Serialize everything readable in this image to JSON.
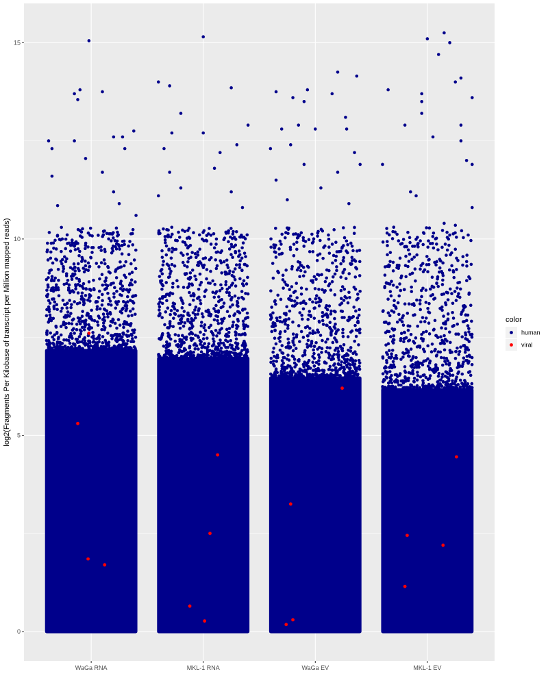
{
  "chart_data": {
    "type": "scatter",
    "title": "",
    "xlabel": "",
    "ylabel": "log2(Fragments Per Kilobase of transcript per Million mapped reads)",
    "categories": [
      "WaGa RNA",
      "MKL-1 RNA",
      "WaGa EV",
      "MKL-1 EV"
    ],
    "yticks": [
      0,
      5,
      10,
      15
    ],
    "ylim": [
      -0.75,
      16.0
    ],
    "grid": true,
    "legend": {
      "title": "color",
      "position": "right",
      "entries": [
        {
          "label": "human",
          "color": "#00008b"
        },
        {
          "label": "viral",
          "color": "#ff0000"
        }
      ]
    },
    "colors": {
      "human": "#00008b",
      "viral": "#ff0000",
      "panel": "#ebebeb",
      "grid": "#ffffff"
    },
    "jitter_width": 0.4,
    "dense_band": [
      {
        "category": "WaGa RNA",
        "ymin": 0,
        "ymax": 7.2
      },
      {
        "category": "MKL-1 RNA",
        "ymin": 0,
        "ymax": 7.0
      },
      {
        "category": "WaGa EV",
        "ymin": 0,
        "ymax": 6.5
      },
      {
        "category": "MKL-1 EV",
        "ymin": 0,
        "ymax": 6.2
      }
    ],
    "series": [
      {
        "name": "viral",
        "points": [
          {
            "x": "WaGa RNA",
            "offset": -0.05,
            "y": 7.6
          },
          {
            "x": "WaGa RNA",
            "offset": -0.3,
            "y": 5.3
          },
          {
            "x": "WaGa RNA",
            "offset": -0.07,
            "y": 1.85
          },
          {
            "x": "WaGa RNA",
            "offset": 0.3,
            "y": 1.7
          },
          {
            "x": "MKL-1 RNA",
            "offset": 0.32,
            "y": 4.5
          },
          {
            "x": "MKL-1 RNA",
            "offset": 0.15,
            "y": 2.5
          },
          {
            "x": "MKL-1 RNA",
            "offset": -0.3,
            "y": 0.65
          },
          {
            "x": "MKL-1 RNA",
            "offset": 0.03,
            "y": 0.27
          },
          {
            "x": "WaGa EV",
            "offset": 0.6,
            "y": 6.2
          },
          {
            "x": "WaGa EV",
            "offset": -0.55,
            "y": 3.25
          },
          {
            "x": "WaGa EV",
            "offset": -0.5,
            "y": 0.3
          },
          {
            "x": "WaGa EV",
            "offset": -0.65,
            "y": 0.18
          },
          {
            "x": "MKL-1 EV",
            "offset": 0.65,
            "y": 4.45
          },
          {
            "x": "MKL-1 EV",
            "offset": -0.45,
            "y": 2.45
          },
          {
            "x": "MKL-1 EV",
            "offset": 0.35,
            "y": 2.2
          },
          {
            "x": "MKL-1 EV",
            "offset": -0.5,
            "y": 1.15
          }
        ]
      },
      {
        "name": "human",
        "outliers": [
          {
            "x": "WaGa RNA",
            "offset": -0.02,
            "y": 15.05
          },
          {
            "x": "WaGa RNA",
            "offset": 0.1,
            "y": 13.75
          },
          {
            "x": "WaGa RNA",
            "offset": -0.15,
            "y": 13.7
          },
          {
            "x": "WaGa RNA",
            "offset": -0.1,
            "y": 13.8
          },
          {
            "x": "WaGa RNA",
            "offset": -0.12,
            "y": 13.55
          },
          {
            "x": "WaGa RNA",
            "offset": -0.38,
            "y": 12.5
          },
          {
            "x": "WaGa RNA",
            "offset": -0.35,
            "y": 12.3
          },
          {
            "x": "WaGa RNA",
            "offset": -0.15,
            "y": 12.5
          },
          {
            "x": "WaGa RNA",
            "offset": 0.38,
            "y": 12.75
          },
          {
            "x": "WaGa RNA",
            "offset": 0.28,
            "y": 12.6
          },
          {
            "x": "WaGa RNA",
            "offset": 0.2,
            "y": 12.6
          },
          {
            "x": "WaGa RNA",
            "offset": -0.05,
            "y": 12.05
          },
          {
            "x": "WaGa RNA",
            "offset": 0.3,
            "y": 12.3
          },
          {
            "x": "WaGa RNA",
            "offset": 0.1,
            "y": 11.7
          },
          {
            "x": "WaGa RNA",
            "offset": -0.35,
            "y": 11.6
          },
          {
            "x": "WaGa RNA",
            "offset": 0.2,
            "y": 11.2
          },
          {
            "x": "WaGa RNA",
            "offset": 0.25,
            "y": 10.9
          },
          {
            "x": "WaGa RNA",
            "offset": -0.3,
            "y": 10.85
          },
          {
            "x": "WaGa RNA",
            "offset": 0.4,
            "y": 10.6
          },
          {
            "x": "MKL-1 RNA",
            "offset": 0.0,
            "y": 15.15
          },
          {
            "x": "MKL-1 RNA",
            "offset": -0.4,
            "y": 14.0
          },
          {
            "x": "MKL-1 RNA",
            "offset": -0.3,
            "y": 13.9
          },
          {
            "x": "MKL-1 RNA",
            "offset": 0.25,
            "y": 13.85
          },
          {
            "x": "MKL-1 RNA",
            "offset": -0.2,
            "y": 13.2
          },
          {
            "x": "MKL-1 RNA",
            "offset": 0.4,
            "y": 12.9
          },
          {
            "x": "MKL-1 RNA",
            "offset": -0.28,
            "y": 12.7
          },
          {
            "x": "MKL-1 RNA",
            "offset": 0.0,
            "y": 12.7
          },
          {
            "x": "MKL-1 RNA",
            "offset": 0.3,
            "y": 12.4
          },
          {
            "x": "MKL-1 RNA",
            "offset": -0.35,
            "y": 12.3
          },
          {
            "x": "MKL-1 RNA",
            "offset": 0.15,
            "y": 12.2
          },
          {
            "x": "MKL-1 RNA",
            "offset": 0.1,
            "y": 11.8
          },
          {
            "x": "MKL-1 RNA",
            "offset": -0.3,
            "y": 11.7
          },
          {
            "x": "MKL-1 RNA",
            "offset": 0.25,
            "y": 11.2
          },
          {
            "x": "MKL-1 RNA",
            "offset": -0.2,
            "y": 11.3
          },
          {
            "x": "MKL-1 RNA",
            "offset": 0.35,
            "y": 10.8
          },
          {
            "x": "MKL-1 RNA",
            "offset": -0.4,
            "y": 11.1
          },
          {
            "x": "WaGa EV",
            "offset": 0.2,
            "y": 14.25
          },
          {
            "x": "WaGa EV",
            "offset": 0.37,
            "y": 14.15
          },
          {
            "x": "WaGa EV",
            "offset": -0.35,
            "y": 13.75
          },
          {
            "x": "WaGa EV",
            "offset": -0.07,
            "y": 13.8
          },
          {
            "x": "WaGa EV",
            "offset": -0.2,
            "y": 13.6
          },
          {
            "x": "WaGa EV",
            "offset": -0.1,
            "y": 13.5
          },
          {
            "x": "WaGa EV",
            "offset": 0.15,
            "y": 13.7
          },
          {
            "x": "WaGa EV",
            "offset": 0.27,
            "y": 13.1
          },
          {
            "x": "WaGa EV",
            "offset": -0.3,
            "y": 12.8
          },
          {
            "x": "WaGa EV",
            "offset": -0.15,
            "y": 12.9
          },
          {
            "x": "WaGa EV",
            "offset": 0.0,
            "y": 12.8
          },
          {
            "x": "WaGa EV",
            "offset": 0.28,
            "y": 12.8
          },
          {
            "x": "WaGa EV",
            "offset": -0.4,
            "y": 12.3
          },
          {
            "x": "WaGa EV",
            "offset": -0.22,
            "y": 12.4
          },
          {
            "x": "WaGa EV",
            "offset": 0.35,
            "y": 12.2
          },
          {
            "x": "WaGa EV",
            "offset": 0.4,
            "y": 11.9
          },
          {
            "x": "WaGa EV",
            "offset": -0.1,
            "y": 11.9
          },
          {
            "x": "WaGa EV",
            "offset": 0.2,
            "y": 11.7
          },
          {
            "x": "WaGa EV",
            "offset": -0.35,
            "y": 11.5
          },
          {
            "x": "WaGa EV",
            "offset": 0.05,
            "y": 11.3
          },
          {
            "x": "WaGa EV",
            "offset": -0.25,
            "y": 11.0
          },
          {
            "x": "WaGa EV",
            "offset": 0.3,
            "y": 10.9
          },
          {
            "x": "MKL-1 EV",
            "offset": 0.15,
            "y": 15.25
          },
          {
            "x": "MKL-1 EV",
            "offset": 0.2,
            "y": 15.0
          },
          {
            "x": "MKL-1 EV",
            "offset": 0.0,
            "y": 15.1
          },
          {
            "x": "MKL-1 EV",
            "offset": 0.1,
            "y": 14.7
          },
          {
            "x": "MKL-1 EV",
            "offset": 0.3,
            "y": 14.1
          },
          {
            "x": "MKL-1 EV",
            "offset": 0.25,
            "y": 14.0
          },
          {
            "x": "MKL-1 EV",
            "offset": -0.35,
            "y": 13.8
          },
          {
            "x": "MKL-1 EV",
            "offset": -0.05,
            "y": 13.7
          },
          {
            "x": "MKL-1 EV",
            "offset": 0.4,
            "y": 13.6
          },
          {
            "x": "MKL-1 EV",
            "offset": -0.05,
            "y": 13.5
          },
          {
            "x": "MKL-1 EV",
            "offset": -0.05,
            "y": 13.2
          },
          {
            "x": "MKL-1 EV",
            "offset": -0.2,
            "y": 12.9
          },
          {
            "x": "MKL-1 EV",
            "offset": 0.3,
            "y": 12.9
          },
          {
            "x": "MKL-1 EV",
            "offset": 0.05,
            "y": 12.6
          },
          {
            "x": "MKL-1 EV",
            "offset": 0.3,
            "y": 12.5
          },
          {
            "x": "MKL-1 EV",
            "offset": 0.35,
            "y": 12.0
          },
          {
            "x": "MKL-1 EV",
            "offset": 0.4,
            "y": 11.9
          },
          {
            "x": "MKL-1 EV",
            "offset": -0.4,
            "y": 11.9
          },
          {
            "x": "MKL-1 EV",
            "offset": -0.15,
            "y": 11.2
          },
          {
            "x": "MKL-1 EV",
            "offset": -0.1,
            "y": 11.1
          },
          {
            "x": "MKL-1 EV",
            "offset": 0.4,
            "y": 10.8
          },
          {
            "x": "MKL-1 EV",
            "offset": 0.15,
            "y": 10.4
          },
          {
            "x": "MKL-1 EV",
            "offset": -0.3,
            "y": 10.3
          },
          {
            "x": "MKL-1 EV",
            "offset": 0.25,
            "y": 10.35
          },
          {
            "x": "MKL-1 EV",
            "offset": 0.2,
            "y": 10.1
          }
        ]
      }
    ]
  }
}
